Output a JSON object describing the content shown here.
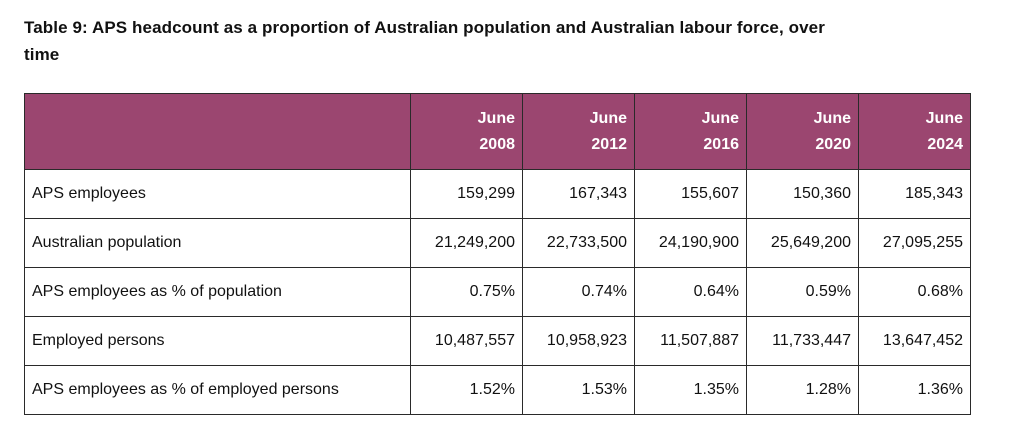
{
  "table": {
    "title": "Table 9: APS headcount as a proportion of Australian population and Australian labour force, over time",
    "columns": [
      {
        "line1": "June",
        "line2": "2008"
      },
      {
        "line1": "June",
        "line2": "2012"
      },
      {
        "line1": "June",
        "line2": "2016"
      },
      {
        "line1": "June",
        "line2": "2020"
      },
      {
        "line1": "June",
        "line2": "2024"
      }
    ],
    "rows": [
      {
        "label": "APS employees",
        "values": [
          "159,299",
          "167,343",
          "155,607",
          "150,360",
          "185,343"
        ]
      },
      {
        "label": "Australian population",
        "values": [
          "21,249,200",
          "22,733,500",
          "24,190,900",
          "25,649,200",
          "27,095,255"
        ]
      },
      {
        "label": "APS employees as % of population",
        "values": [
          "0.75%",
          "0.74%",
          "0.64%",
          "0.59%",
          "0.68%"
        ]
      },
      {
        "label": "Employed persons",
        "values": [
          "10,487,557",
          "10,958,923",
          "11,507,887",
          "11,733,447",
          "13,647,452"
        ]
      },
      {
        "label": "APS employees as % of employed persons",
        "values": [
          "1.52%",
          "1.53%",
          "1.35%",
          "1.28%",
          "1.36%"
        ]
      }
    ]
  },
  "colors": {
    "header_background": "#9b4670",
    "header_text": "#ffffff",
    "border": "#2a2a2a"
  }
}
